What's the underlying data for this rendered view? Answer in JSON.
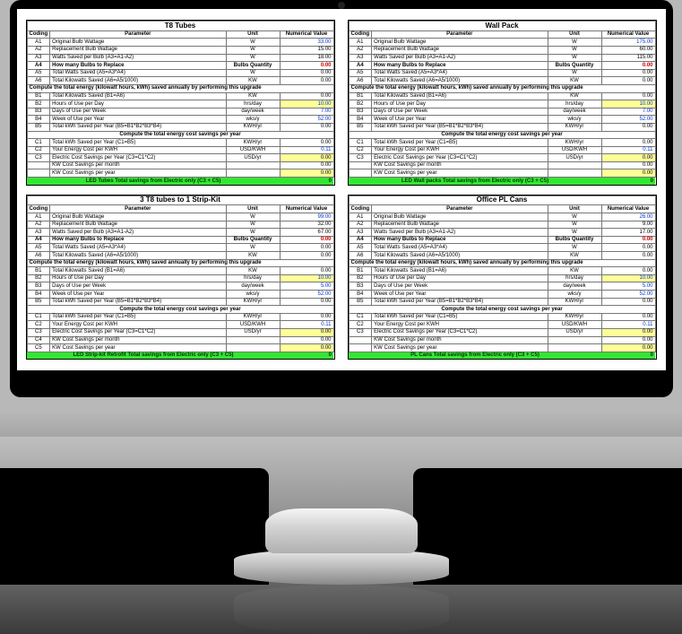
{
  "panels": [
    {
      "title": "T8 Tubes",
      "headers": [
        "Coding",
        "Parameter",
        "Unit",
        "Numerical Value"
      ],
      "rowsA": [
        {
          "code": "A1",
          "param": "Original Bulb Wattage",
          "unit": "W",
          "val": "33.00",
          "cls": "blue"
        },
        {
          "code": "A2",
          "param": "Replacement Bulb Wattage",
          "unit": "W",
          "val": "15.00",
          "cls": ""
        },
        {
          "code": "A3",
          "param": "Watts Saved per Bulb (A3=A1-A2)",
          "unit": "W",
          "val": "18.00",
          "cls": ""
        },
        {
          "code": "A4",
          "param": "How many Bulbs to Replace",
          "unit": "Bulbs Quantity",
          "val": "0.00",
          "cls": "red",
          "bold": true
        },
        {
          "code": "A5",
          "param": "Total Watts Saved  (A5=A3*A4)",
          "unit": "W",
          "val": "0.00",
          "cls": ""
        },
        {
          "code": "A6",
          "param": "Total Kilowatts Saved (A6=A5/1000)",
          "unit": "KW",
          "val": "0.00",
          "cls": ""
        }
      ],
      "section1": "Compute the total energy (kilowatt hours, kWh) saved annually by performing this upgrade",
      "rowsB": [
        {
          "code": "B1",
          "param": "Total Kilowatts Saved (B1=A6)",
          "unit": "KW",
          "val": "0.00",
          "cls": ""
        },
        {
          "code": "B2",
          "param": "Hours of Use per Day",
          "unit": "hrs/day",
          "val": "10.00",
          "cls": "blue",
          "hl": true
        },
        {
          "code": "B3",
          "param": "Days of Use per Week",
          "unit": "day/week",
          "val": "7.00",
          "cls": "blue"
        },
        {
          "code": "B4",
          "param": "Week of Use per Year",
          "unit": "wks/y",
          "val": "52.00",
          "cls": "blue"
        },
        {
          "code": "B5",
          "param": "Total kWh Saved per Year (B5=B1*B2*B3*B4)",
          "unit": "KWH/yr",
          "val": "0.00",
          "cls": ""
        }
      ],
      "section2": "Compute the total energy cost savings per year",
      "rowsC": [
        {
          "code": "C1",
          "param": "Total kWh Saved per Year  (C1=B5)",
          "unit": "KWH/yr",
          "val": "0.00",
          "cls": ""
        },
        {
          "code": "C2",
          "param": "Your Energy Cost per KWH",
          "unit": "USD/KWH",
          "val": "0.11",
          "cls": "blue"
        },
        {
          "code": "C3",
          "param": "Electric Cost Savings per Year  (C3=C1*C2)",
          "unit": "USD/yr",
          "val": "0.00",
          "cls": "",
          "hl": true
        },
        {
          "code": "",
          "param": "KW Cost Savings per month",
          "unit": "",
          "val": "0.00",
          "cls": ""
        },
        {
          "code": "",
          "param": "KW Cost Savings per year",
          "unit": "",
          "val": "0.00",
          "cls": "",
          "hl": true
        }
      ],
      "footer": "LED Tubes Total savings from Electric only (C3 + C5)",
      "footer_val": "0"
    },
    {
      "title": "Wall Pack",
      "headers": [
        "Coding",
        "Parameter",
        "Unit",
        "Numerical Value"
      ],
      "rowsA": [
        {
          "code": "A1",
          "param": "Original Bulb Wattage",
          "unit": "W",
          "val": "175.00",
          "cls": "blue"
        },
        {
          "code": "A2",
          "param": "Replacement Bulb Wattage",
          "unit": "W",
          "val": "60.00",
          "cls": ""
        },
        {
          "code": "A3",
          "param": "Watts Saved per Bulb (A3=A1-A2)",
          "unit": "W",
          "val": "115.00",
          "cls": ""
        },
        {
          "code": "A4",
          "param": "How many Bulbs to Replace",
          "unit": "Bulbs Quantity",
          "val": "0.00",
          "cls": "red",
          "bold": true
        },
        {
          "code": "A5",
          "param": "Total Watts Saved  (A5=A3*A4)",
          "unit": "W",
          "val": "0.00",
          "cls": ""
        },
        {
          "code": "A6",
          "param": "Total Kilowatts Saved (A6=A5/1000)",
          "unit": "KW",
          "val": "0.00",
          "cls": ""
        }
      ],
      "section1": "Compute the total energy (kilowatt hours, kWh) saved annually by performing this upgrade",
      "rowsB": [
        {
          "code": "B1",
          "param": "Total Kilowatts Saved (B1=A6)",
          "unit": "KW",
          "val": "0.00",
          "cls": ""
        },
        {
          "code": "B2",
          "param": "Hours of Use per Day",
          "unit": "hrs/day",
          "val": "10.00",
          "cls": "blue",
          "hl": true
        },
        {
          "code": "B3",
          "param": "Days of Use per Week",
          "unit": "day/week",
          "val": "7.00",
          "cls": "blue"
        },
        {
          "code": "B4",
          "param": "Week of Use per Year",
          "unit": "wks/y",
          "val": "52.00",
          "cls": "blue"
        },
        {
          "code": "B5",
          "param": "Total kWh Saved per Year (B5=B1*B2*B3*B4)",
          "unit": "KWH/yr",
          "val": "0.00",
          "cls": ""
        }
      ],
      "section2": "Compute the total energy cost savings per year",
      "rowsC": [
        {
          "code": "C1",
          "param": "Total kWh Saved per Year  (C1=B5)",
          "unit": "KWH/yr",
          "val": "0.00",
          "cls": ""
        },
        {
          "code": "C2",
          "param": "Your Energy Cost per KWH",
          "unit": "USD/KWH",
          "val": "0.11",
          "cls": "blue"
        },
        {
          "code": "C3",
          "param": "Electric Cost Savings per Year  (C3=C1*C2)",
          "unit": "USD/yr",
          "val": "0.00",
          "cls": "",
          "hl": true
        },
        {
          "code": "",
          "param": "KW Cost Savings per month",
          "unit": "",
          "val": "0.00",
          "cls": ""
        },
        {
          "code": "",
          "param": "KW Cost Savings per year",
          "unit": "",
          "val": "0.00",
          "cls": "",
          "hl": true
        }
      ],
      "footer": "LED Wall packs Total savings from Electric only (C3 + C5)",
      "footer_val": "0"
    },
    {
      "title": "3 T8 tubes to 1 Strip-Kit",
      "headers": [
        "Coding",
        "Parameter",
        "Unit",
        "Numerical Value"
      ],
      "rowsA": [
        {
          "code": "A1",
          "param": "Original Bulb Wattage",
          "unit": "W",
          "val": "99.00",
          "cls": "blue"
        },
        {
          "code": "A2",
          "param": "Replacement Bulb Wattage",
          "unit": "W",
          "val": "32.00",
          "cls": ""
        },
        {
          "code": "A3",
          "param": "Watts Saved per Bulb (A3=A1-A2)",
          "unit": "W",
          "val": "67.00",
          "cls": ""
        },
        {
          "code": "A4",
          "param": "How many Bulbs to Replace",
          "unit": "Bulbs Quantity",
          "val": "0.00",
          "cls": "red",
          "bold": true
        },
        {
          "code": "A5",
          "param": "Total Watts Saved  (A5=A3*A4)",
          "unit": "W",
          "val": "0.00",
          "cls": ""
        },
        {
          "code": "A6",
          "param": "Total Kilowatts Saved (A6=A5/1000)",
          "unit": "KW",
          "val": "0.00",
          "cls": ""
        }
      ],
      "section1": "Compute the total energy (kilowatt hours, kWh) saved annually by performing this upgrade",
      "rowsB": [
        {
          "code": "B1",
          "param": "Total Kilowatts Saved (B1=A6)",
          "unit": "KW",
          "val": "0.00",
          "cls": ""
        },
        {
          "code": "B2",
          "param": "Hours of Use per Day",
          "unit": "hrs/day",
          "val": "10.00",
          "cls": "blue",
          "hl": true
        },
        {
          "code": "B3",
          "param": "Days of Use per Week",
          "unit": "day/week",
          "val": "5.00",
          "cls": "blue"
        },
        {
          "code": "B4",
          "param": "Week of Use per Year",
          "unit": "wks/y",
          "val": "52.00",
          "cls": "blue"
        },
        {
          "code": "B5",
          "param": "Total kWh Saved per Year (B5=B1*B2*B3*B4)",
          "unit": "KWH/yr",
          "val": "0.00",
          "cls": ""
        }
      ],
      "section2": "Compute the total energy cost savings per year",
      "rowsC": [
        {
          "code": "C1",
          "param": "Total kWh Saved per Year  (C1=B5)",
          "unit": "KWH/yr",
          "val": "0.00",
          "cls": ""
        },
        {
          "code": "C2",
          "param": "Your Energy Cost per KWH",
          "unit": "USD/KWH",
          "val": "0.11",
          "cls": "blue"
        },
        {
          "code": "C3",
          "param": "Electric Cost Savings per Year  (C3=C1*C2)",
          "unit": "USD/yr",
          "val": "0.00",
          "cls": "",
          "hl": true
        },
        {
          "code": "C4",
          "param": "KW Cost Savings per month",
          "unit": "",
          "val": "0.00",
          "cls": ""
        },
        {
          "code": "C5",
          "param": "KW Cost Savings per year",
          "unit": "",
          "val": "0.00",
          "cls": "",
          "hl": true
        }
      ],
      "footer": "LED Strip-kit Retrofit Total savings from Electric only (C3 + C5)",
      "footer_val": "0"
    },
    {
      "title": "Office PL Cans",
      "headers": [
        "Coding",
        "Parameter",
        "Unit",
        "Numerical Value"
      ],
      "rowsA": [
        {
          "code": "A1",
          "param": "Original Bulb Wattage",
          "unit": "W",
          "val": "26.00",
          "cls": "blue"
        },
        {
          "code": "A2",
          "param": "Replacement Bulb Wattage",
          "unit": "W",
          "val": "9.00",
          "cls": ""
        },
        {
          "code": "A3",
          "param": "Watts Saved per Bulb (A3=A1-A2)",
          "unit": "W",
          "val": "17.00",
          "cls": ""
        },
        {
          "code": "A4",
          "param": "How many Bulbs to Replace",
          "unit": "Bulbs Quantity",
          "val": "0.00",
          "cls": "red",
          "bold": true
        },
        {
          "code": "A5",
          "param": "Total Watts Saved  (A5=A3*A4)",
          "unit": "W",
          "val": "0.00",
          "cls": ""
        },
        {
          "code": "A6",
          "param": "Total Kilowatts Saved (A6=A5/1000)",
          "unit": "KW",
          "val": "0.00",
          "cls": ""
        }
      ],
      "section1": "Compute the total energy (kilowatt hours, kWh) saved annually by performing this upgrade",
      "rowsB": [
        {
          "code": "B1",
          "param": "Total Kilowatts Saved (B1=A6)",
          "unit": "KW",
          "val": "0.00",
          "cls": ""
        },
        {
          "code": "B2",
          "param": "Hours of Use per Day",
          "unit": "hrs/day",
          "val": "10.00",
          "cls": "blue",
          "hl": true
        },
        {
          "code": "B3",
          "param": "Days of Use per Week",
          "unit": "day/week",
          "val": "5.00",
          "cls": "blue"
        },
        {
          "code": "B4",
          "param": "Week of Use per Year",
          "unit": "wks/y",
          "val": "52.00",
          "cls": "blue"
        },
        {
          "code": "B5",
          "param": "Total kWh Saved per Year (B5=B1*B2*B3*B4)",
          "unit": "KWH/yr",
          "val": "0.00",
          "cls": ""
        }
      ],
      "section2": "Compute the total energy cost savings per year",
      "rowsC": [
        {
          "code": "C1",
          "param": "Total kWh Saved per Year  (C1=B5)",
          "unit": "KWH/yr",
          "val": "0.00",
          "cls": ""
        },
        {
          "code": "C2",
          "param": "Your Energy Cost per KWH",
          "unit": "USD/KWH",
          "val": "0.11",
          "cls": "blue"
        },
        {
          "code": "C3",
          "param": "Electric Cost Savings per Year  (C3=C1*C2)",
          "unit": "USD/yr",
          "val": "0.00",
          "cls": "",
          "hl": true
        },
        {
          "code": "",
          "param": "KW Cost Savings per month",
          "unit": "",
          "val": "0.00",
          "cls": ""
        },
        {
          "code": "",
          "param": "KW Cost Savings per year",
          "unit": "",
          "val": "0.00",
          "cls": "",
          "hl": true
        }
      ],
      "footer": "PL Cans Total savings from Electric only (C3 + C5)",
      "footer_val": "0"
    }
  ]
}
